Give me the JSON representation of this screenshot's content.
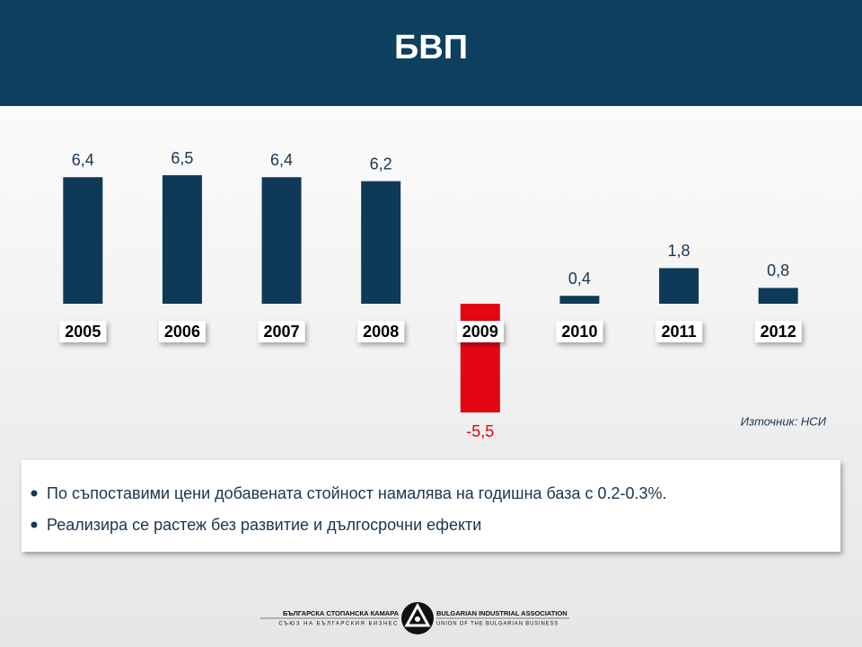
{
  "chart_data": {
    "type": "bar",
    "title": "БВП",
    "categories": [
      "2005",
      "2006",
      "2007",
      "2008",
      "2009",
      "2010",
      "2011",
      "2012"
    ],
    "values": [
      6.4,
      6.5,
      6.4,
      6.2,
      -5.5,
      0.4,
      1.8,
      0.8
    ],
    "value_labels": [
      "6,4",
      "6,5",
      "6,4",
      "6,2",
      "-5,5",
      "0,4",
      "1,8",
      "0,8"
    ],
    "color": "#0e3a58",
    "negative_color": "#e30613",
    "ylim": [
      -6,
      8
    ],
    "source": "Източник: НСИ"
  },
  "bullets": [
    "По съпоставими цени добавената стойност намалява на годишна база с 0.2-0.3%.",
    "Реализира се растеж без развитие и дългосрочни ефекти"
  ],
  "footer": {
    "left_name": "БЪЛГАРСКА СТОПАНСКА КАМАРА",
    "left_sub": "СЪЮЗ НА БЪЛГАРСКИЯ БИЗНЕС",
    "right_name": "BULGARIAN INDUSTRIAL ASSOCIATION",
    "right_sub": "UNION OF THE BULGARIAN BUSINESS"
  }
}
